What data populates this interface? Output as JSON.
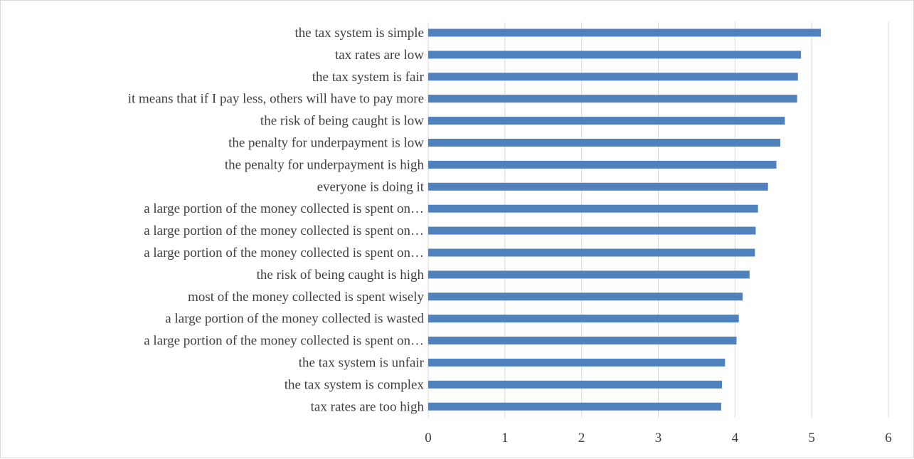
{
  "chart_data": {
    "type": "bar",
    "orientation": "horizontal",
    "title": "",
    "xlabel": "",
    "ylabel": "",
    "xlim": [
      0,
      6
    ],
    "x_ticks": [
      "0",
      "1",
      "2",
      "3",
      "4",
      "5",
      "6"
    ],
    "grid": "vertical",
    "legend": "none",
    "bar_color": "#4f81bd",
    "grid_color": "#d9d9d9",
    "categories": [
      "the tax system is simple",
      "tax rates are low",
      "the tax system is fair",
      "it means that if I pay less, others will have to pay more",
      "the risk of being caught is low",
      "the penalty for underpayment is low",
      "the penalty for underpayment is high",
      "everyone is doing it",
      "a large portion of the money collected is spent on…",
      "a large portion of the money collected is spent on…",
      "a large portion of the money collected is spent on…",
      "the risk of being caught is high",
      "most of the money collected is spent wisely",
      "a large portion of the money collected is wasted",
      "a large portion of the money collected is spent on…",
      "the tax system is unfair",
      "the tax system is complex",
      "tax rates are too high"
    ],
    "values": [
      5.12,
      4.86,
      4.82,
      4.81,
      4.65,
      4.59,
      4.54,
      4.43,
      4.3,
      4.27,
      4.26,
      4.19,
      4.1,
      4.05,
      4.02,
      3.87,
      3.83,
      3.82
    ]
  }
}
